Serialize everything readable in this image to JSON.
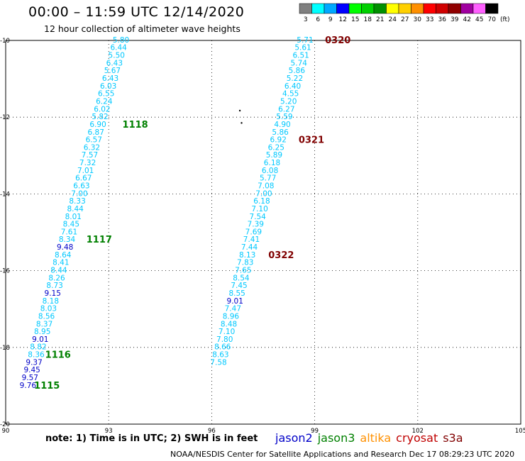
{
  "header": {
    "title": "00:00 – 11:59 UTC 12/14/2020",
    "subtitle": "12 hour collection of altimeter wave heights"
  },
  "legend": {
    "unit": "(ft)",
    "bins": [
      {
        "label": "3",
        "color": "#808080"
      },
      {
        "label": "6",
        "color": "#00ffff"
      },
      {
        "label": "9",
        "color": "#00a8ff"
      },
      {
        "label": "12",
        "color": "#0000ff"
      },
      {
        "label": "15",
        "color": "#00ff00"
      },
      {
        "label": "18",
        "color": "#00d000"
      },
      {
        "label": "21",
        "color": "#009000"
      },
      {
        "label": "24",
        "color": "#ffff00"
      },
      {
        "label": "27",
        "color": "#ffd000"
      },
      {
        "label": "30",
        "color": "#ff9000"
      },
      {
        "label": "33",
        "color": "#ff0000"
      },
      {
        "label": "36",
        "color": "#d00000"
      },
      {
        "label": "39",
        "color": "#900000"
      },
      {
        "label": "42",
        "color": "#a000a0"
      },
      {
        "label": "45",
        "color": "#ff60ff"
      },
      {
        "label": "70",
        "color": "#000000"
      }
    ]
  },
  "map": {
    "lon_range": [
      90,
      105
    ],
    "lat_range": [
      -20,
      -10
    ],
    "lon_ticks": [
      "90",
      "93",
      "96",
      "99",
      "102",
      "105"
    ],
    "lat_ticks": [
      "-10",
      "-12",
      "-14",
      "-16",
      "-18",
      "-20"
    ],
    "colors": {
      "cyan": "#00c8ff",
      "blue": "#0000c8",
      "green": "#008000",
      "maroon": "#800000"
    },
    "tracks": [
      {
        "name": "west-track",
        "points": [
          {
            "lon": 93.6,
            "lat": -9.98,
            "v": "5.80",
            "c": "cyan"
          },
          {
            "lon": 93.53,
            "lat": -10.18,
            "v": "6.44",
            "c": "cyan"
          },
          {
            "lon": 93.47,
            "lat": -10.38,
            "v": "5.50",
            "c": "cyan"
          },
          {
            "lon": 93.41,
            "lat": -10.58,
            "v": "6.43",
            "c": "cyan"
          },
          {
            "lon": 93.35,
            "lat": -10.78,
            "v": "5.67",
            "c": "cyan"
          },
          {
            "lon": 93.29,
            "lat": -10.98,
            "v": "6.43",
            "c": "cyan"
          },
          {
            "lon": 93.23,
            "lat": -11.18,
            "v": "6.03",
            "c": "cyan"
          },
          {
            "lon": 93.17,
            "lat": -11.38,
            "v": "6.55",
            "c": "cyan"
          },
          {
            "lon": 93.11,
            "lat": -11.58,
            "v": "6.24",
            "c": "cyan"
          },
          {
            "lon": 93.05,
            "lat": -11.78,
            "v": "6.02",
            "c": "cyan"
          },
          {
            "lon": 92.99,
            "lat": -11.98,
            "v": "5.82",
            "c": "cyan"
          },
          {
            "lon": 92.93,
            "lat": -12.18,
            "v": "6.90",
            "c": "cyan"
          },
          {
            "lon": 92.87,
            "lat": -12.38,
            "v": "6.87",
            "c": "cyan"
          },
          {
            "lon": 92.81,
            "lat": -12.58,
            "v": "6.57",
            "c": "cyan"
          },
          {
            "lon": 92.75,
            "lat": -12.78,
            "v": "6.32",
            "c": "cyan"
          },
          {
            "lon": 92.69,
            "lat": -12.98,
            "v": "7.57",
            "c": "cyan"
          },
          {
            "lon": 92.63,
            "lat": -13.18,
            "v": "7.32",
            "c": "cyan"
          },
          {
            "lon": 92.57,
            "lat": -13.38,
            "v": "7.01",
            "c": "cyan"
          },
          {
            "lon": 92.51,
            "lat": -13.58,
            "v": "6.67",
            "c": "cyan"
          },
          {
            "lon": 92.45,
            "lat": -13.78,
            "v": "6.63",
            "c": "cyan"
          },
          {
            "lon": 92.39,
            "lat": -13.98,
            "v": "7.00",
            "c": "cyan"
          },
          {
            "lon": 92.33,
            "lat": -14.18,
            "v": "8.33",
            "c": "cyan"
          },
          {
            "lon": 92.27,
            "lat": -14.38,
            "v": "8.44",
            "c": "cyan"
          },
          {
            "lon": 92.21,
            "lat": -14.58,
            "v": "8.01",
            "c": "cyan"
          },
          {
            "lon": 92.15,
            "lat": -14.78,
            "v": "8.45",
            "c": "cyan"
          },
          {
            "lon": 92.09,
            "lat": -14.98,
            "v": "7.61",
            "c": "cyan"
          },
          {
            "lon": 92.03,
            "lat": -15.18,
            "v": "8.34",
            "c": "cyan"
          },
          {
            "lon": 91.97,
            "lat": -15.38,
            "v": "9.48",
            "c": "blue"
          },
          {
            "lon": 91.91,
            "lat": -15.58,
            "v": "8.64",
            "c": "cyan"
          },
          {
            "lon": 91.85,
            "lat": -15.78,
            "v": "8.41",
            "c": "cyan"
          },
          {
            "lon": 91.79,
            "lat": -15.98,
            "v": "8.44",
            "c": "cyan"
          },
          {
            "lon": 91.73,
            "lat": -16.18,
            "v": "8.26",
            "c": "cyan"
          },
          {
            "lon": 91.67,
            "lat": -16.38,
            "v": "8.73",
            "c": "cyan"
          },
          {
            "lon": 91.61,
            "lat": -16.58,
            "v": "9.15",
            "c": "blue"
          },
          {
            "lon": 91.55,
            "lat": -16.78,
            "v": "8.18",
            "c": "cyan"
          },
          {
            "lon": 91.49,
            "lat": -16.98,
            "v": "8.03",
            "c": "cyan"
          },
          {
            "lon": 91.43,
            "lat": -17.18,
            "v": "8.56",
            "c": "cyan"
          },
          {
            "lon": 91.37,
            "lat": -17.38,
            "v": "8.37",
            "c": "cyan"
          },
          {
            "lon": 91.31,
            "lat": -17.58,
            "v": "8.95",
            "c": "cyan"
          },
          {
            "lon": 91.25,
            "lat": -17.78,
            "v": "9.01",
            "c": "blue"
          },
          {
            "lon": 91.19,
            "lat": -17.98,
            "v": "8.82",
            "c": "cyan"
          },
          {
            "lon": 91.13,
            "lat": -18.18,
            "v": "8.36",
            "c": "cyan"
          },
          {
            "lon": 91.07,
            "lat": -18.38,
            "v": "9.37",
            "c": "blue"
          },
          {
            "lon": 91.01,
            "lat": -18.58,
            "v": "9.45",
            "c": "blue"
          },
          {
            "lon": 90.95,
            "lat": -18.78,
            "v": "9.57",
            "c": "blue"
          },
          {
            "lon": 90.89,
            "lat": -18.98,
            "v": "9.76",
            "c": "blue"
          }
        ],
        "time_labels": [
          {
            "text": "1118",
            "lon": 93.4,
            "lat": -12.18,
            "c": "green"
          },
          {
            "text": "1117",
            "lon": 92.35,
            "lat": -15.18,
            "c": "green"
          },
          {
            "text": "1116",
            "lon": 91.15,
            "lat": -18.18,
            "c": "green"
          },
          {
            "text": "1115",
            "lon": 90.83,
            "lat": -18.98,
            "c": "green"
          }
        ]
      },
      {
        "name": "east-track",
        "points": [
          {
            "lon": 98.96,
            "lat": -9.98,
            "v": "5.71",
            "c": "cyan"
          },
          {
            "lon": 98.9,
            "lat": -10.18,
            "v": "5.61",
            "c": "cyan"
          },
          {
            "lon": 98.84,
            "lat": -10.38,
            "v": "6.51",
            "c": "cyan"
          },
          {
            "lon": 98.78,
            "lat": -10.58,
            "v": "5.74",
            "c": "cyan"
          },
          {
            "lon": 98.72,
            "lat": -10.78,
            "v": "5.86",
            "c": "cyan"
          },
          {
            "lon": 98.66,
            "lat": -10.98,
            "v": "5.22",
            "c": "cyan"
          },
          {
            "lon": 98.6,
            "lat": -11.18,
            "v": "6.40",
            "c": "cyan"
          },
          {
            "lon": 98.54,
            "lat": -11.38,
            "v": "4.55",
            "c": "cyan"
          },
          {
            "lon": 98.48,
            "lat": -11.58,
            "v": "5.20",
            "c": "cyan"
          },
          {
            "lon": 98.42,
            "lat": -11.78,
            "v": "6.27",
            "c": "cyan"
          },
          {
            "lon": 98.36,
            "lat": -11.98,
            "v": "5.59",
            "c": "cyan"
          },
          {
            "lon": 98.3,
            "lat": -12.18,
            "v": "4.90",
            "c": "cyan"
          },
          {
            "lon": 98.24,
            "lat": -12.38,
            "v": "5.86",
            "c": "cyan"
          },
          {
            "lon": 98.18,
            "lat": -12.58,
            "v": "6.92",
            "c": "cyan"
          },
          {
            "lon": 98.12,
            "lat": -12.78,
            "v": "6.25",
            "c": "cyan"
          },
          {
            "lon": 98.06,
            "lat": -12.98,
            "v": "5.89",
            "c": "cyan"
          },
          {
            "lon": 98.0,
            "lat": -13.18,
            "v": "6.18",
            "c": "cyan"
          },
          {
            "lon": 97.94,
            "lat": -13.38,
            "v": "6.08",
            "c": "cyan"
          },
          {
            "lon": 97.88,
            "lat": -13.58,
            "v": "5.77",
            "c": "cyan"
          },
          {
            "lon": 97.82,
            "lat": -13.78,
            "v": "7.08",
            "c": "cyan"
          },
          {
            "lon": 97.76,
            "lat": -13.98,
            "v": "7.00",
            "c": "cyan"
          },
          {
            "lon": 97.7,
            "lat": -14.18,
            "v": "6.18",
            "c": "cyan"
          },
          {
            "lon": 97.64,
            "lat": -14.38,
            "v": "7.10",
            "c": "cyan"
          },
          {
            "lon": 97.58,
            "lat": -14.58,
            "v": "7.54",
            "c": "cyan"
          },
          {
            "lon": 97.52,
            "lat": -14.78,
            "v": "7.39",
            "c": "cyan"
          },
          {
            "lon": 97.46,
            "lat": -14.98,
            "v": "7.69",
            "c": "cyan"
          },
          {
            "lon": 97.4,
            "lat": -15.18,
            "v": "7.41",
            "c": "cyan"
          },
          {
            "lon": 97.34,
            "lat": -15.38,
            "v": "7.44",
            "c": "cyan"
          },
          {
            "lon": 97.28,
            "lat": -15.58,
            "v": "8.13",
            "c": "cyan"
          },
          {
            "lon": 97.22,
            "lat": -15.78,
            "v": "7.83",
            "c": "cyan"
          },
          {
            "lon": 97.16,
            "lat": -15.98,
            "v": "7.65",
            "c": "cyan"
          },
          {
            "lon": 97.1,
            "lat": -16.18,
            "v": "8.54",
            "c": "cyan"
          },
          {
            "lon": 97.04,
            "lat": -16.38,
            "v": "7.45",
            "c": "cyan"
          },
          {
            "lon": 96.98,
            "lat": -16.58,
            "v": "8.55",
            "c": "cyan"
          },
          {
            "lon": 96.92,
            "lat": -16.78,
            "v": "9.01",
            "c": "blue"
          },
          {
            "lon": 96.86,
            "lat": -16.98,
            "v": "7.47",
            "c": "cyan"
          },
          {
            "lon": 96.8,
            "lat": -17.18,
            "v": "8.96",
            "c": "cyan"
          },
          {
            "lon": 96.74,
            "lat": -17.38,
            "v": "8.48",
            "c": "cyan"
          },
          {
            "lon": 96.68,
            "lat": -17.58,
            "v": "7.10",
            "c": "cyan"
          },
          {
            "lon": 96.62,
            "lat": -17.78,
            "v": "7.80",
            "c": "cyan"
          },
          {
            "lon": 96.56,
            "lat": -17.98,
            "v": "8.66",
            "c": "cyan"
          },
          {
            "lon": 96.5,
            "lat": -18.18,
            "v": "8.63",
            "c": "cyan"
          },
          {
            "lon": 96.44,
            "lat": -18.38,
            "v": "7.58",
            "c": "cyan"
          }
        ],
        "time_labels": [
          {
            "text": "0320",
            "lon": 99.3,
            "lat": -9.98,
            "c": "maroon"
          },
          {
            "text": "0321",
            "lon": 98.53,
            "lat": -12.58,
            "c": "maroon"
          },
          {
            "text": "0322",
            "lon": 97.65,
            "lat": -15.58,
            "c": "maroon"
          }
        ]
      }
    ],
    "island_marks": [
      {
        "lon": 96.82,
        "lat": -11.83
      },
      {
        "lon": 96.87,
        "lat": -12.15
      }
    ]
  },
  "note": "note:  1) Time is in UTC;  2) SWH is in feet",
  "satellites": [
    {
      "name": "jason2",
      "color": "#0000c8"
    },
    {
      "name": "jason3",
      "color": "#008000"
    },
    {
      "name": "altika",
      "color": "#ff9000"
    },
    {
      "name": "cryosat",
      "color": "#c00000"
    },
    {
      "name": "s3a",
      "color": "#800000"
    }
  ],
  "footer": "NOAA/NESDIS Center for Satellite Applications and Research    Dec 17 08:29:23 UTC 2020"
}
